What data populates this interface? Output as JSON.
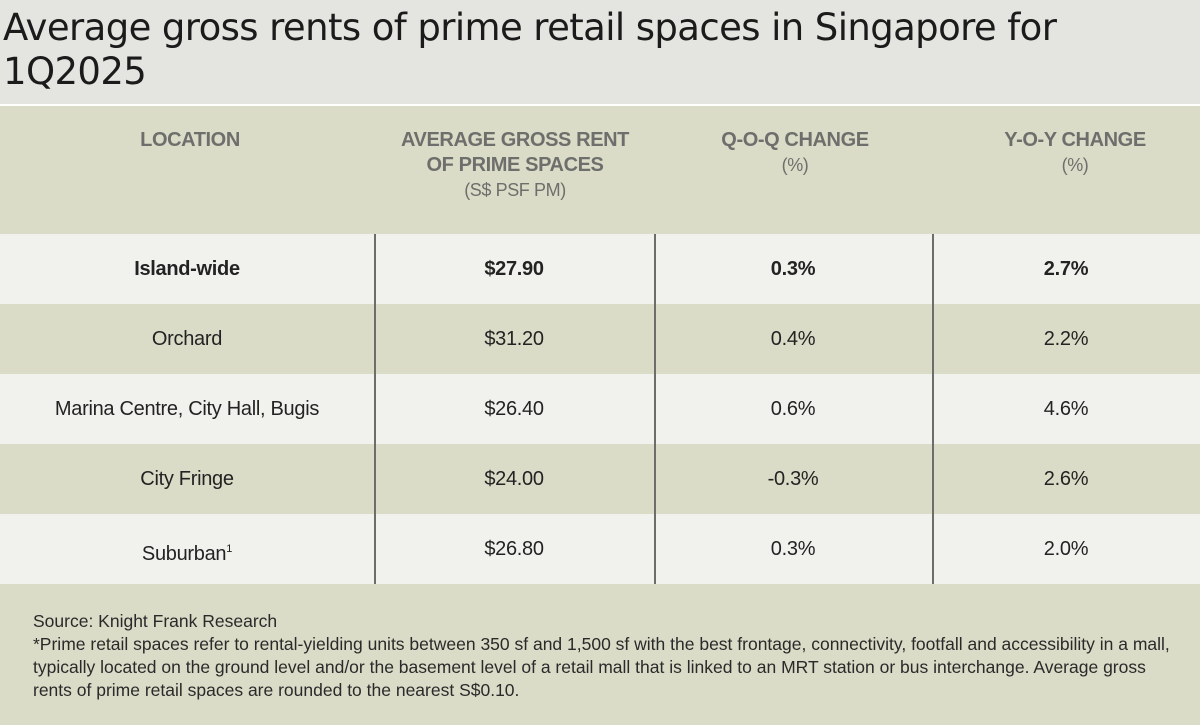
{
  "title": "Average gross rents of prime retail spaces in Singapore for 1Q2025",
  "chart_data": {
    "type": "table",
    "title": "Average gross rents of prime retail spaces in Singapore for 1Q2025",
    "columns": [
      {
        "name": "LOCATION",
        "unit": ""
      },
      {
        "name": "AVERAGE GROSS RENT OF PRIME SPACES",
        "unit": "(S$ PSF PM)"
      },
      {
        "name": "Q-O-Q CHANGE",
        "unit": "(%)"
      },
      {
        "name": "Y-O-Y CHANGE",
        "unit": "(%)"
      }
    ],
    "header_lines": {
      "rent_line1": "AVERAGE GROSS RENT",
      "rent_line2": "OF PRIME SPACES"
    },
    "rows": [
      {
        "location": "Island-wide",
        "superscript": "",
        "rent": "$27.90",
        "qoq": "0.3%",
        "yoy": "2.7%",
        "bold": true
      },
      {
        "location": "Orchard",
        "superscript": "",
        "rent": "$31.20",
        "qoq": "0.4%",
        "yoy": "2.2%",
        "bold": false
      },
      {
        "location": "Marina Centre, City Hall, Bugis",
        "superscript": "",
        "rent": "$26.40",
        "qoq": "0.6%",
        "yoy": "4.6%",
        "bold": false
      },
      {
        "location": "City Fringe",
        "superscript": "",
        "rent": "$24.00",
        "qoq": "-0.3%",
        "yoy": "2.6%",
        "bold": false
      },
      {
        "location": "Suburban",
        "superscript": "1",
        "rent": "$26.80",
        "qoq": "0.3%",
        "yoy": "2.0%",
        "bold": false
      }
    ]
  },
  "notes": {
    "source": "Source: Knight Frank Research",
    "footnote": "*Prime retail spaces refer to rental-yielding units between 350 sf and 1,500 sf with the best frontage, connectivity, footfall and accessibility in a mall, typically located on the ground level and/or the basement level of a retail mall that is linked to an MRT station or bus interchange. Average gross rents of prime retail spaces are rounded to the nearest S$0.10."
  },
  "colors": {
    "header_bg": "#dadcc7",
    "row_light": "#f1f1ee",
    "row_dark": "#dadcc7",
    "divider": "#6d6d6a"
  }
}
